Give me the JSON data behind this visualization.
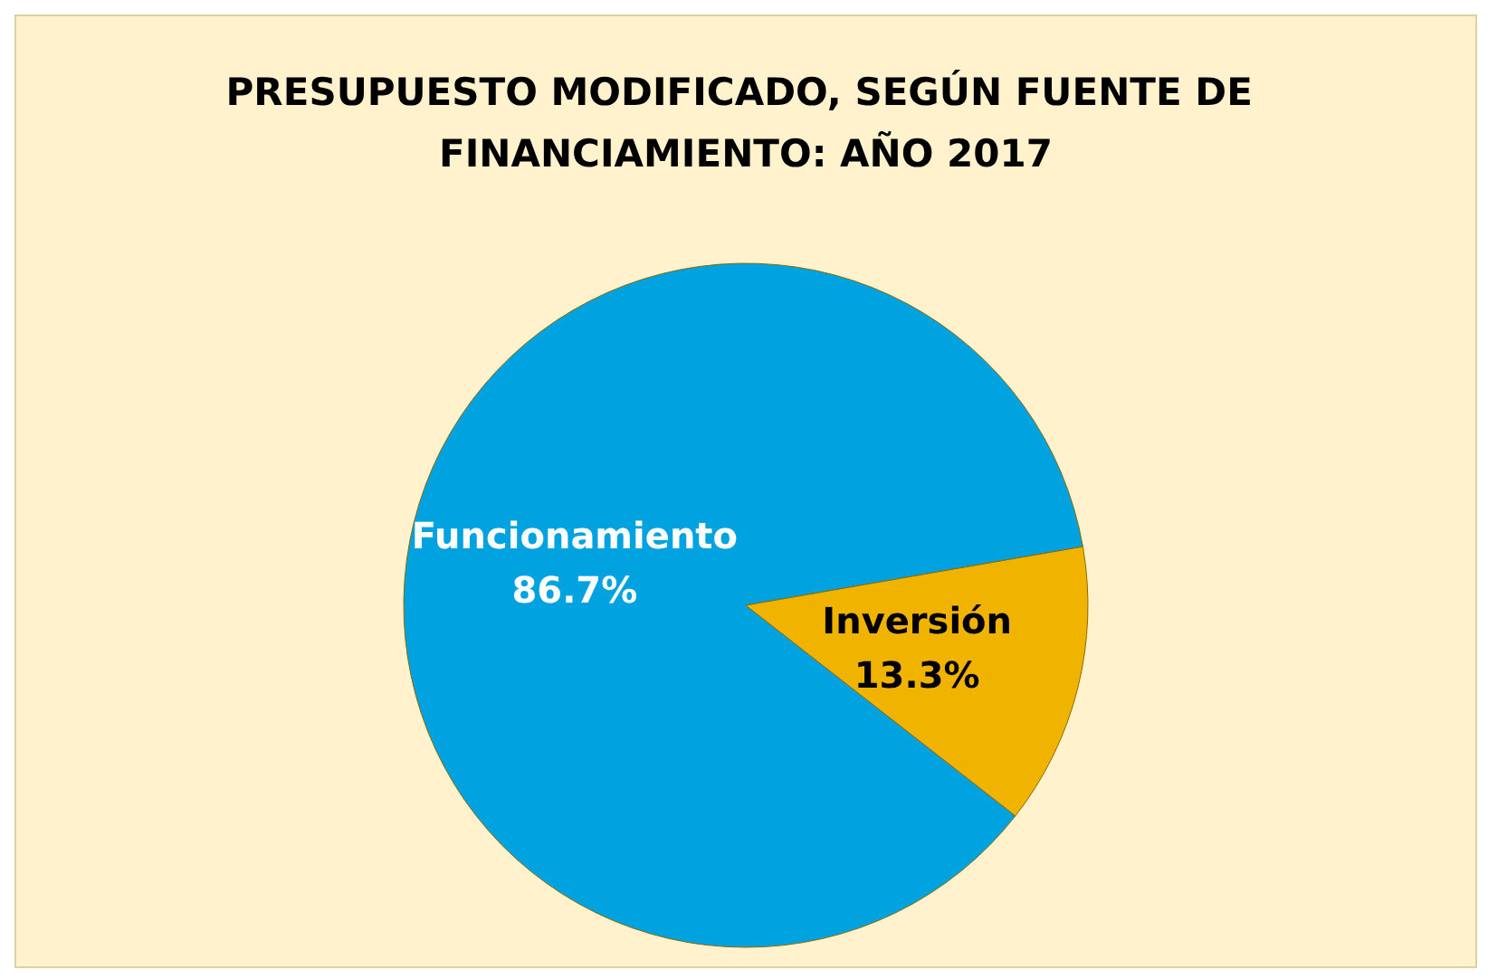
{
  "chart_data": {
    "type": "pie",
    "title": "PRESUPUESTO MODIFICADO, SEGÚN FUENTE DE FINANCIAMIENTO: AÑO 2017",
    "categories": [
      "Funcionamiento",
      "Inversión"
    ],
    "values": [
      86.7,
      13.3
    ],
    "value_labels": [
      "86.7%",
      "13.3%"
    ],
    "colors": [
      "#00a3e0",
      "#f0b400"
    ],
    "legend": false
  }
}
